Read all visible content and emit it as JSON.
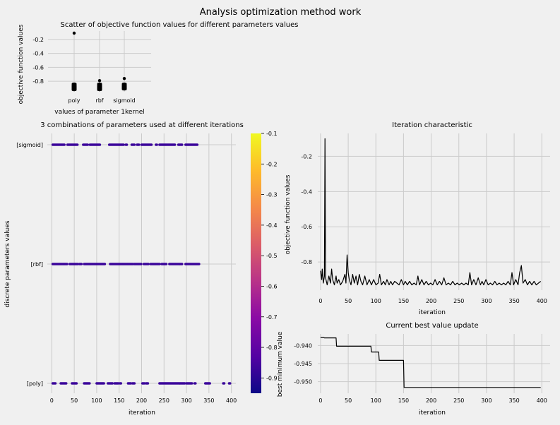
{
  "title": "Analysis optimization method work",
  "charts": {
    "scatter": {
      "title": "Scatter of objective function values for different parameters values",
      "xlabel": "values of parameter 1kernel",
      "ylabel": "objective function values"
    },
    "combos": {
      "title": "3 combinations of parameters used at different iterations",
      "xlabel": "iteration",
      "ylabel": "discrete parameters values"
    },
    "iter": {
      "title": "Iteration characteristic",
      "xlabel": "iteration",
      "ylabel": "objective function values"
    },
    "best": {
      "title": "Current best value update",
      "xlabel": "iteration",
      "ylabel": "best minimum value"
    },
    "colorbar": {
      "ticks": [
        "-0.1",
        "-0.2",
        "-0.3",
        "-0.4",
        "-0.5",
        "-0.6",
        "-0.7",
        "-0.8",
        "-0.9"
      ]
    }
  },
  "colors": {
    "background": "#f0f0f0",
    "grid": "#cbcbcb",
    "line": "#000000",
    "point": "#3a049a"
  },
  "chart_data": [
    {
      "id": "scatter",
      "type": "scatter",
      "categories": [
        "poly",
        "rbf",
        "sigmoid"
      ],
      "ytick_labels": [
        "-0.2",
        "-0.4",
        "-0.6",
        "-0.8"
      ],
      "ylim": [
        -0.95,
        -0.08
      ],
      "grid": true,
      "points": [
        {
          "category": "poly",
          "values": [
            -0.11,
            -0.84,
            -0.86,
            -0.87,
            -0.88,
            -0.89,
            -0.9,
            -0.91,
            -0.92
          ]
        },
        {
          "category": "rbf",
          "values": [
            -0.79,
            -0.84,
            -0.86,
            -0.87,
            -0.88,
            -0.89,
            -0.9,
            -0.91,
            -0.92
          ]
        },
        {
          "category": "sigmoid",
          "values": [
            -0.76,
            -0.84,
            -0.86,
            -0.87,
            -0.88,
            -0.89,
            -0.9,
            -0.91
          ]
        }
      ]
    },
    {
      "id": "combos",
      "type": "scatter",
      "categories": [
        "[sigmoid]",
        "[rbf]",
        "[poly]"
      ],
      "xticks": [
        0,
        50,
        100,
        150,
        200,
        250,
        300,
        350,
        400
      ],
      "xlim": [
        -10,
        410
      ],
      "grid": true,
      "colorbar": {
        "range": [
          -0.95,
          -0.1
        ],
        "colormap": "plasma"
      },
      "rows": [
        {
          "category": "[sigmoid]",
          "x_ranges": [
            [
              2,
              28
            ],
            [
              35,
              58
            ],
            [
              70,
              80
            ],
            [
              85,
              108
            ],
            [
              128,
              160
            ],
            [
              165,
              168
            ],
            [
              178,
              185
            ],
            [
              190,
              195
            ],
            [
              200,
              222
            ],
            [
              232,
              234
            ],
            [
              240,
              260
            ],
            [
              262,
              270
            ],
            [
              272,
              275
            ],
            [
              282,
              290
            ],
            [
              298,
              325
            ]
          ]
        },
        {
          "category": "[rbf]",
          "x_ranges": [
            [
              2,
              34
            ],
            [
              40,
              58
            ],
            [
              62,
              66
            ],
            [
              72,
              110
            ],
            [
              112,
              118
            ],
            [
              130,
              148
            ],
            [
              150,
              180
            ],
            [
              183,
              200
            ],
            [
              205,
              215
            ],
            [
              220,
              240
            ],
            [
              245,
              255
            ],
            [
              262,
              290
            ],
            [
              298,
              328
            ]
          ]
        },
        {
          "category": "[poly]",
          "x_ranges": [
            [
              2,
              8
            ],
            [
              20,
              33
            ],
            [
              45,
              55
            ],
            [
              72,
              84
            ],
            [
              100,
              110
            ],
            [
              112,
              116
            ],
            [
              125,
              135
            ],
            [
              140,
              148
            ],
            [
              152,
              155
            ],
            [
              170,
              176
            ],
            [
              180,
              185
            ],
            [
              202,
              206
            ],
            [
              210,
              214
            ],
            [
              240,
              296
            ],
            [
              300,
              312
            ],
            [
              318,
              320
            ],
            [
              342,
              352
            ],
            [
              382,
              384
            ],
            [
              395,
              397
            ]
          ]
        }
      ],
      "point_value": -0.9
    },
    {
      "id": "iter",
      "type": "line",
      "xticks": [
        0,
        50,
        100,
        150,
        200,
        250,
        300,
        350,
        400
      ],
      "ytick_labels": [
        "-0.2",
        "-0.4",
        "-0.6",
        "-0.8"
      ],
      "xlim": [
        -5,
        415
      ],
      "ylim": [
        -0.96,
        -0.07
      ],
      "grid": true,
      "series": [
        {
          "points": [
            [
              0,
              -0.85
            ],
            [
              2,
              -0.9
            ],
            [
              3,
              -0.84
            ],
            [
              5,
              -0.92
            ],
            [
              7,
              -0.88
            ],
            [
              8,
              -0.1
            ],
            [
              9,
              -0.89
            ],
            [
              12,
              -0.93
            ],
            [
              15,
              -0.88
            ],
            [
              18,
              -0.92
            ],
            [
              20,
              -0.84
            ],
            [
              22,
              -0.9
            ],
            [
              25,
              -0.93
            ],
            [
              28,
              -0.88
            ],
            [
              30,
              -0.92
            ],
            [
              33,
              -0.9
            ],
            [
              36,
              -0.93
            ],
            [
              40,
              -0.91
            ],
            [
              44,
              -0.87
            ],
            [
              46,
              -0.92
            ],
            [
              48,
              -0.76
            ],
            [
              50,
              -0.86
            ],
            [
              52,
              -0.9
            ],
            [
              55,
              -0.93
            ],
            [
              58,
              -0.87
            ],
            [
              61,
              -0.92
            ],
            [
              64,
              -0.88
            ],
            [
              67,
              -0.93
            ],
            [
              70,
              -0.87
            ],
            [
              73,
              -0.91
            ],
            [
              76,
              -0.93
            ],
            [
              80,
              -0.88
            ],
            [
              84,
              -0.93
            ],
            [
              88,
              -0.9
            ],
            [
              92,
              -0.93
            ],
            [
              96,
              -0.9
            ],
            [
              100,
              -0.93
            ],
            [
              104,
              -0.92
            ],
            [
              107,
              -0.87
            ],
            [
              110,
              -0.93
            ],
            [
              114,
              -0.91
            ],
            [
              117,
              -0.93
            ],
            [
              120,
              -0.9
            ],
            [
              124,
              -0.93
            ],
            [
              127,
              -0.91
            ],
            [
              130,
              -0.93
            ],
            [
              134,
              -0.91
            ],
            [
              138,
              -0.92
            ],
            [
              142,
              -0.93
            ],
            [
              146,
              -0.9
            ],
            [
              150,
              -0.93
            ],
            [
              153,
              -0.91
            ],
            [
              157,
              -0.93
            ],
            [
              161,
              -0.91
            ],
            [
              165,
              -0.93
            ],
            [
              169,
              -0.92
            ],
            [
              173,
              -0.93
            ],
            [
              176,
              -0.88
            ],
            [
              179,
              -0.93
            ],
            [
              183,
              -0.9
            ],
            [
              187,
              -0.93
            ],
            [
              191,
              -0.91
            ],
            [
              195,
              -0.93
            ],
            [
              199,
              -0.92
            ],
            [
              203,
              -0.93
            ],
            [
              207,
              -0.9
            ],
            [
              211,
              -0.93
            ],
            [
              215,
              -0.91
            ],
            [
              219,
              -0.93
            ],
            [
              223,
              -0.89
            ],
            [
              227,
              -0.93
            ],
            [
              231,
              -0.92
            ],
            [
              235,
              -0.93
            ],
            [
              239,
              -0.91
            ],
            [
              243,
              -0.93
            ],
            [
              247,
              -0.92
            ],
            [
              251,
              -0.93
            ],
            [
              255,
              -0.92
            ],
            [
              259,
              -0.93
            ],
            [
              263,
              -0.92
            ],
            [
              267,
              -0.93
            ],
            [
              270,
              -0.86
            ],
            [
              273,
              -0.93
            ],
            [
              277,
              -0.9
            ],
            [
              281,
              -0.93
            ],
            [
              285,
              -0.89
            ],
            [
              289,
              -0.93
            ],
            [
              292,
              -0.91
            ],
            [
              295,
              -0.93
            ],
            [
              299,
              -0.9
            ],
            [
              303,
              -0.93
            ],
            [
              307,
              -0.92
            ],
            [
              311,
              -0.93
            ],
            [
              315,
              -0.91
            ],
            [
              319,
              -0.93
            ],
            [
              323,
              -0.92
            ],
            [
              327,
              -0.93
            ],
            [
              331,
              -0.92
            ],
            [
              335,
              -0.93
            ],
            [
              339,
              -0.91
            ],
            [
              343,
              -0.93
            ],
            [
              346,
              -0.86
            ],
            [
              349,
              -0.93
            ],
            [
              353,
              -0.9
            ],
            [
              357,
              -0.93
            ],
            [
              360,
              -0.86
            ],
            [
              363,
              -0.82
            ],
            [
              366,
              -0.92
            ],
            [
              370,
              -0.9
            ],
            [
              374,
              -0.93
            ],
            [
              378,
              -0.91
            ],
            [
              382,
              -0.93
            ],
            [
              386,
              -0.91
            ],
            [
              390,
              -0.93
            ],
            [
              394,
              -0.92
            ],
            [
              398,
              -0.91
            ]
          ]
        }
      ]
    },
    {
      "id": "best",
      "type": "line",
      "xticks": [
        0,
        50,
        100,
        150,
        200,
        250,
        300,
        350,
        400
      ],
      "ytick_labels": [
        "-0.940",
        "-0.945",
        "-0.950"
      ],
      "xlim": [
        -5,
        415
      ],
      "ylim": [
        -0.9532,
        -0.9368
      ],
      "grid": true,
      "series": [
        {
          "points": [
            [
              0,
              -0.9378
            ],
            [
              6,
              -0.9378
            ],
            [
              7,
              -0.9379
            ],
            [
              28,
              -0.9379
            ],
            [
              29,
              -0.9402
            ],
            [
              91,
              -0.9402
            ],
            [
              92,
              -0.9418
            ],
            [
              105,
              -0.9418
            ],
            [
              106,
              -0.9441
            ],
            [
              150,
              -0.9441
            ],
            [
              151,
              -0.9516
            ],
            [
              398,
              -0.9516
            ]
          ]
        }
      ]
    }
  ]
}
